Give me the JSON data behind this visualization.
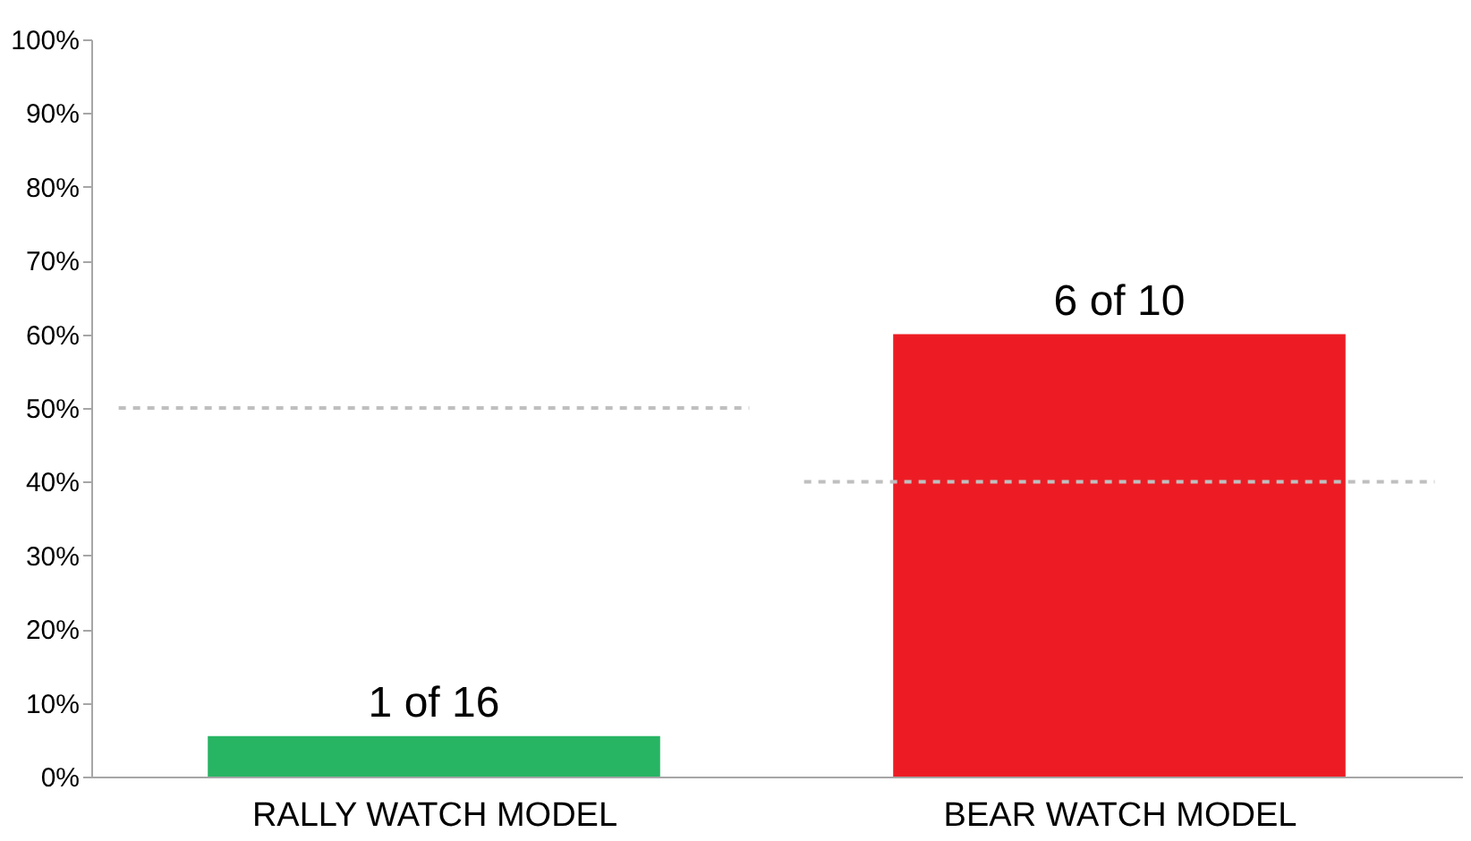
{
  "chart_data": {
    "type": "bar",
    "categories": [
      "RALLY WATCH MODEL",
      "BEAR WATCH MODEL"
    ],
    "values": [
      5.5,
      60
    ],
    "colors": [
      "#27b463",
      "#ed1c24"
    ],
    "annotations": [
      {
        "text": "1 of 16",
        "x": "RALLY WATCH MODEL",
        "y": 5.5
      },
      {
        "text": "6 of 10",
        "x": "BEAR WATCH MODEL",
        "y": 60
      }
    ],
    "ylim": [
      0,
      100
    ],
    "yticks": [
      {
        "value": 0,
        "label": "0%"
      },
      {
        "value": 10,
        "label": "10%"
      },
      {
        "value": 20,
        "label": "20%"
      },
      {
        "value": 30,
        "label": "30%"
      },
      {
        "value": 40,
        "label": "40%"
      },
      {
        "value": 50,
        "label": "50%"
      },
      {
        "value": 60,
        "label": "60%"
      },
      {
        "value": 70,
        "label": "70%"
      },
      {
        "value": 80,
        "label": "80%"
      },
      {
        "value": 90,
        "label": "90%"
      },
      {
        "value": 100,
        "label": "100%"
      }
    ],
    "ref_lines": [
      {
        "axis": "y",
        "value": 50,
        "color": "#bfbfbf",
        "line_style": "dashed"
      },
      {
        "axis": "y",
        "value": 40,
        "color": "#bfbfbf",
        "line_style": "dashed"
      }
    ],
    "grid": false
  }
}
